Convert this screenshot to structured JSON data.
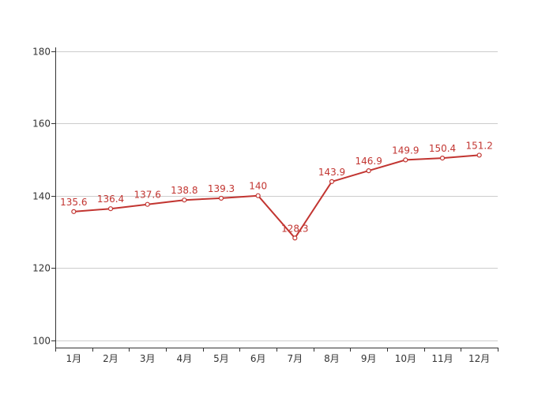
{
  "chart_data": {
    "type": "line",
    "categories": [
      "1月",
      "2月",
      "3月",
      "4月",
      "5月",
      "6月",
      "7月",
      "8月",
      "9月",
      "10月",
      "11月",
      "12月"
    ],
    "values": [
      135.6,
      136.4,
      137.6,
      138.8,
      139.3,
      140,
      128.3,
      143.9,
      146.9,
      149.9,
      150.4,
      151.2
    ],
    "yticks": [
      100,
      120,
      140,
      160,
      180
    ],
    "ylim": [
      98,
      181
    ],
    "grid": true,
    "legend": "none",
    "show_data_labels": true,
    "colors": {
      "series": "#c23531",
      "axis": "#333333",
      "grid": "#cccccc",
      "point_fill": "#ffffff"
    }
  }
}
